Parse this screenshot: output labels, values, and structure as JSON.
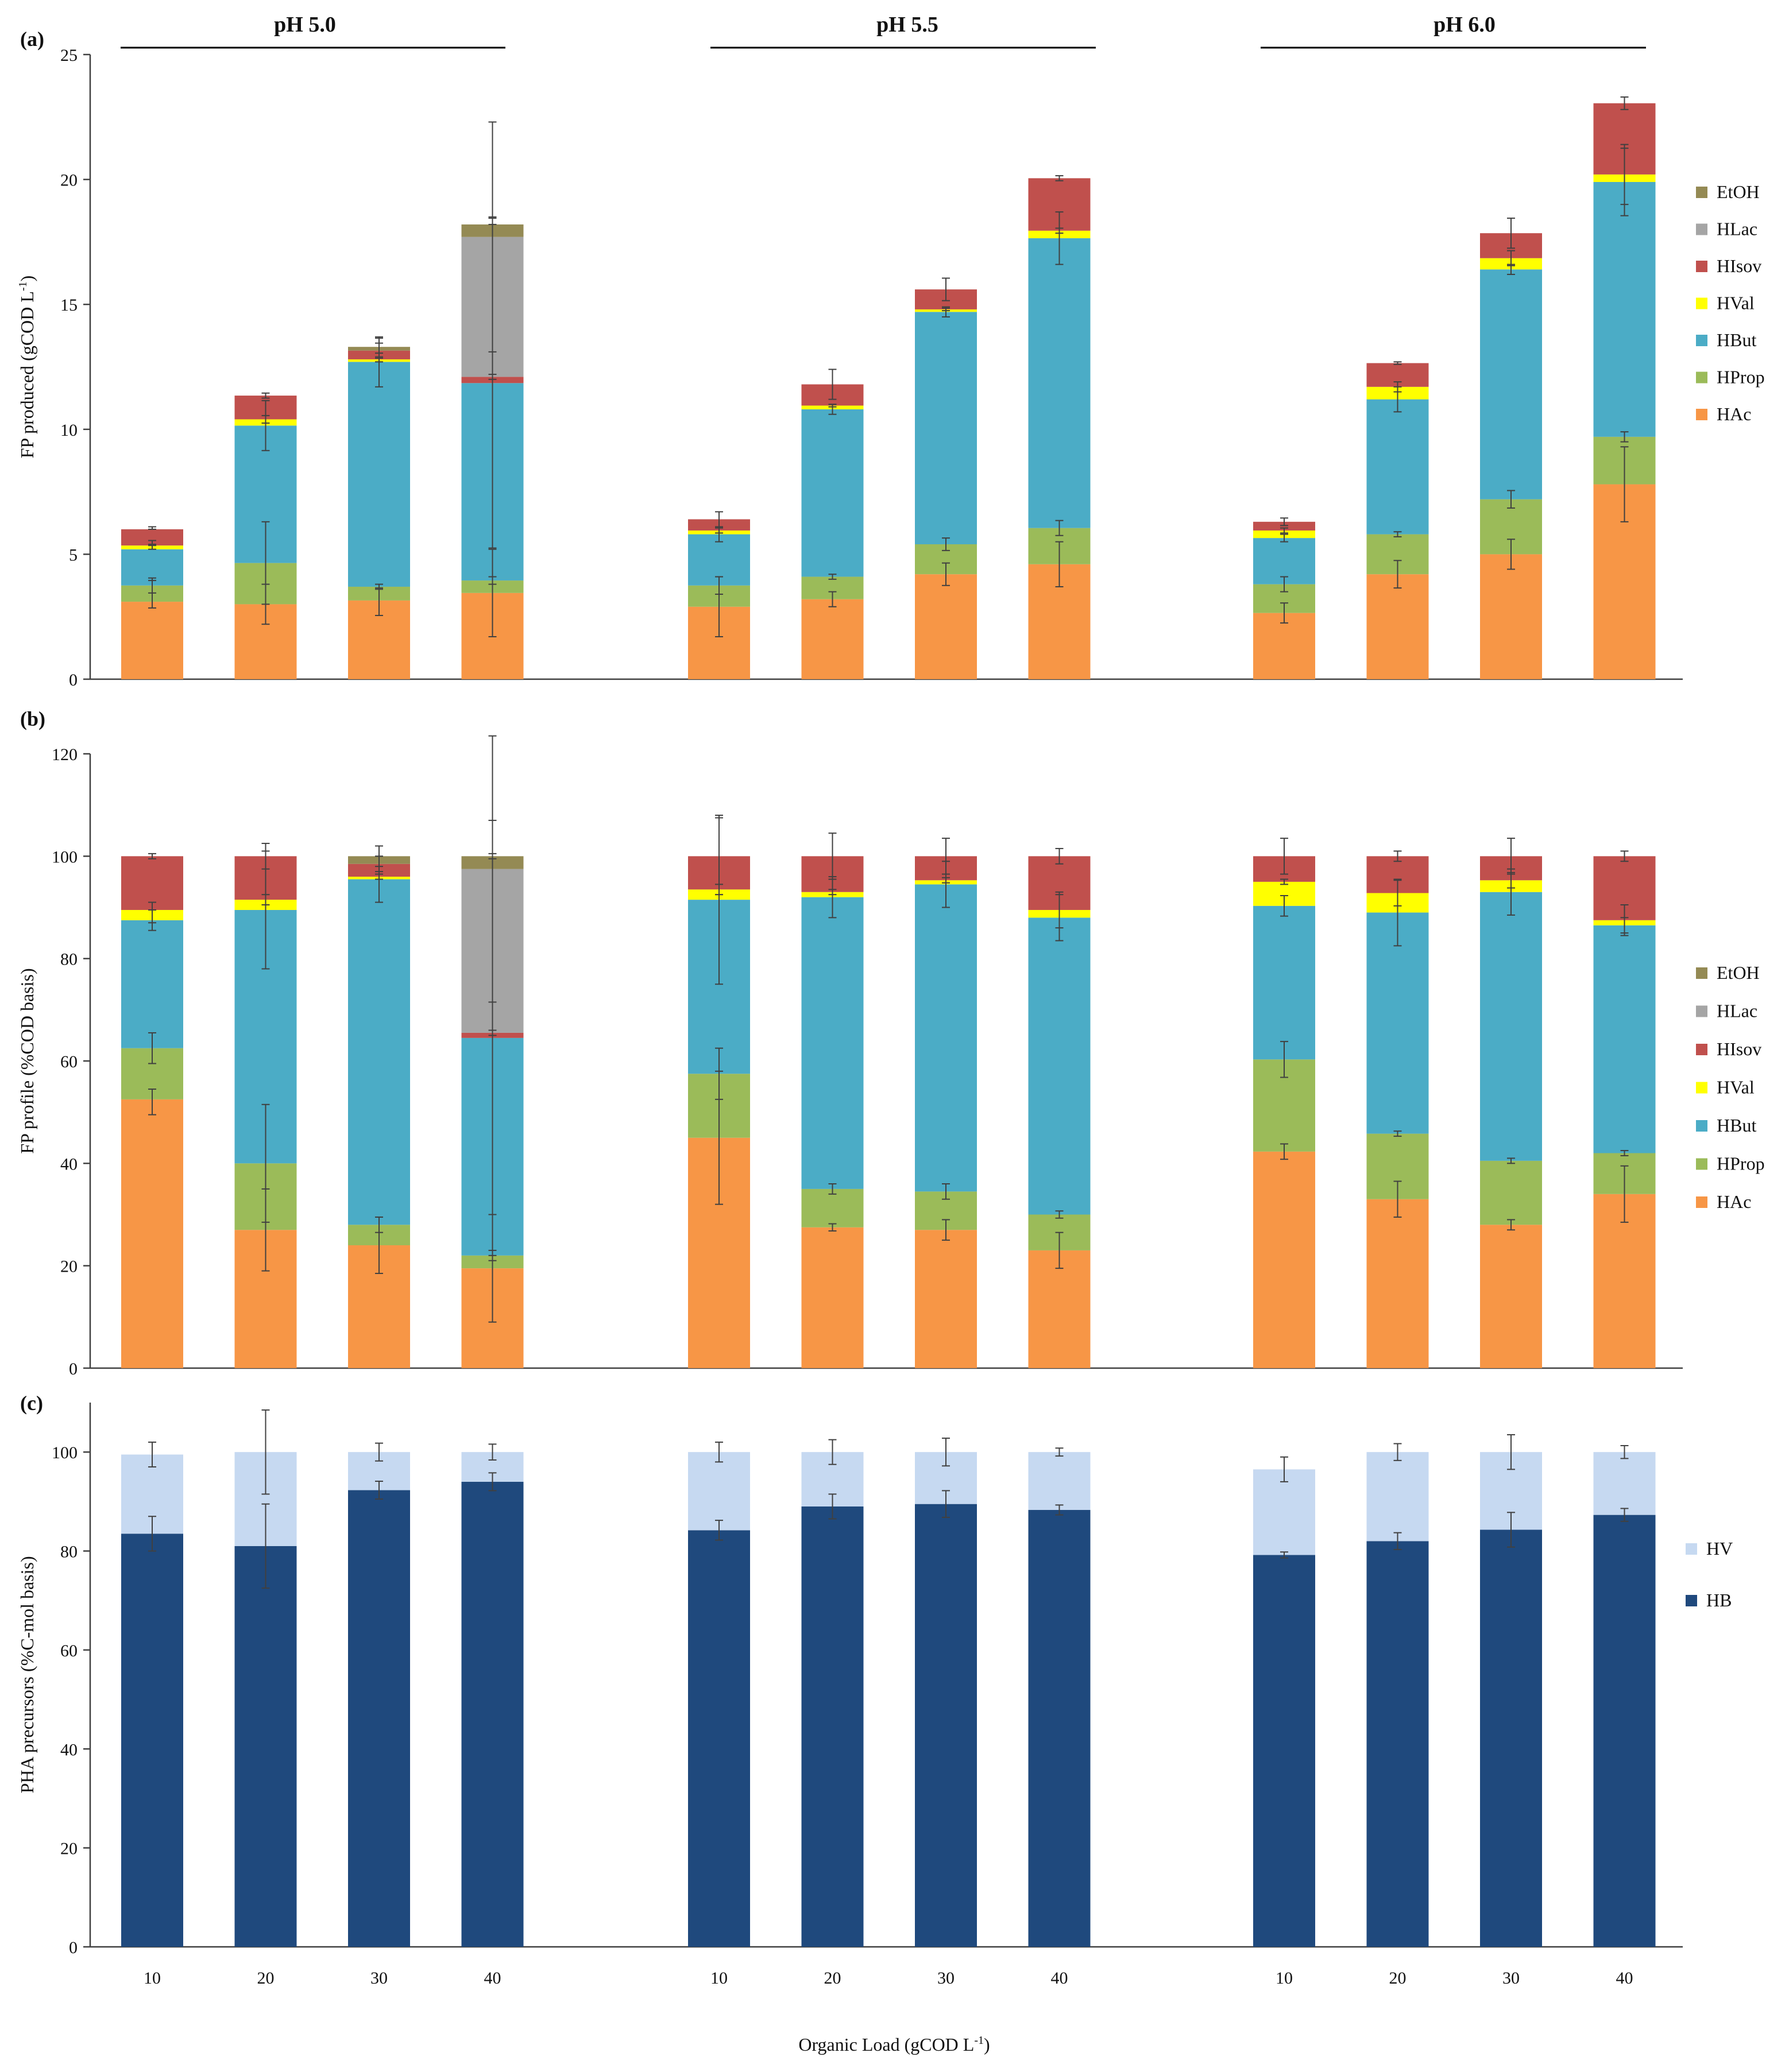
{
  "colors": {
    "HAc": "#f79646",
    "HProp": "#9bbb59",
    "HBut": "#4bacc6",
    "HVal": "#ffff00",
    "HIsov": "#c0504d",
    "HLac": "#a5a5a5",
    "EtOH": "#948a54",
    "HB": "#1f497d",
    "HV": "#c6d9f1",
    "axis": "#404040",
    "error": "#404040"
  },
  "chart_data": [
    {
      "id": "a",
      "type": "bar",
      "stacked": true,
      "panel_label": "(a)",
      "ylabel": "FP produced (gCOD L",
      "ylabel_sup": "-1",
      "ylabel_end": ")",
      "ylim": [
        0,
        25
      ],
      "yticks": [
        "0",
        "5",
        "10",
        "15",
        "20",
        "25"
      ],
      "group_labels": [
        "pH 5.0",
        "pH 5.5",
        "pH 6.0"
      ],
      "legend": [
        "EtOH",
        "HLac",
        "HIsov",
        "HVal",
        "HBut",
        "HProp",
        "HAc"
      ],
      "stack_order": [
        "HAc",
        "HProp",
        "HBut",
        "HVal",
        "HIsov",
        "HLac",
        "EtOH"
      ],
      "bars": [
        {
          "group": 0,
          "load": "10",
          "HAc": 3.1,
          "HProp": 0.65,
          "HBut": 1.45,
          "HVal": 0.15,
          "HIsov": 0.65,
          "HLac": 0,
          "EtOH": 0
        },
        {
          "group": 0,
          "load": "20",
          "HAc": 3.0,
          "HProp": 1.65,
          "HBut": 5.5,
          "HVal": 0.25,
          "HIsov": 0.95,
          "HLac": 0,
          "EtOH": 0
        },
        {
          "group": 0,
          "load": "30",
          "HAc": 3.15,
          "HProp": 0.55,
          "HBut": 9.0,
          "HVal": 0.1,
          "HIsov": 0.35,
          "HLac": 0,
          "EtOH": 0.15
        },
        {
          "group": 0,
          "load": "40",
          "HAc": 3.45,
          "HProp": 0.5,
          "HBut": 7.9,
          "HVal": 0,
          "HIsov": 0.25,
          "HLac": 5.6,
          "EtOH": 0.5
        },
        {
          "group": 1,
          "load": "10",
          "HAc": 2.9,
          "HProp": 0.85,
          "HBut": 2.05,
          "HVal": 0.15,
          "HIsov": 0.45,
          "HLac": 0,
          "EtOH": 0
        },
        {
          "group": 1,
          "load": "20",
          "HAc": 3.2,
          "HProp": 0.9,
          "HBut": 6.7,
          "HVal": 0.15,
          "HIsov": 0.85,
          "HLac": 0,
          "EtOH": 0
        },
        {
          "group": 1,
          "load": "30",
          "HAc": 4.2,
          "HProp": 1.2,
          "HBut": 9.3,
          "HVal": 0.1,
          "HIsov": 0.8,
          "HLac": 0,
          "EtOH": 0
        },
        {
          "group": 1,
          "load": "40",
          "HAc": 4.6,
          "HProp": 1.45,
          "HBut": 11.6,
          "HVal": 0.3,
          "HIsov": 2.1,
          "HLac": 0,
          "EtOH": 0
        },
        {
          "group": 2,
          "load": "10",
          "HAc": 2.65,
          "HProp": 1.15,
          "HBut": 1.85,
          "HVal": 0.3,
          "HIsov": 0.35,
          "HLac": 0,
          "EtOH": 0
        },
        {
          "group": 2,
          "load": "20",
          "HAc": 4.2,
          "HProp": 1.6,
          "HBut": 5.4,
          "HVal": 0.5,
          "HIsov": 0.95,
          "HLac": 0,
          "EtOH": 0
        },
        {
          "group": 2,
          "load": "30",
          "HAc": 5.0,
          "HProp": 2.2,
          "HBut": 9.2,
          "HVal": 0.45,
          "HIsov": 1.0,
          "HLac": 0,
          "EtOH": 0
        },
        {
          "group": 2,
          "load": "40",
          "HAc": 7.8,
          "HProp": 1.9,
          "HBut": 10.2,
          "HVal": 0.3,
          "HIsov": 2.85,
          "HLac": 0,
          "EtOH": 0
        }
      ],
      "errors": [
        [
          [
            3.4,
            0.55
          ],
          [
            3.75,
            0.3
          ],
          [
            5.3,
            0.1
          ],
          [
            5.45,
            0.1
          ],
          [
            6.05,
            0.05
          ]
        ],
        [
          [
            3.0,
            0.8
          ],
          [
            4.65,
            1.65
          ],
          [
            10.15,
            1.0
          ],
          [
            10.4,
            0.15
          ],
          [
            11.35,
            0.1
          ]
        ],
        [
          [
            3.1,
            0.55
          ],
          [
            3.7,
            0.1
          ],
          [
            12.7,
            1.0
          ],
          [
            12.8,
            0.1
          ],
          [
            13.15,
            0.3
          ],
          [
            13.35,
            0.3
          ]
        ],
        [
          [
            3.45,
            1.75
          ],
          [
            3.95,
            0.15
          ],
          [
            11.85,
            6.6
          ],
          [
            12.1,
            0.1
          ],
          [
            17.7,
            4.6
          ],
          [
            18.35,
            0.15
          ]
        ],
        [
          [
            2.9,
            1.2
          ],
          [
            3.75,
            0.35
          ],
          [
            5.8,
            0.3
          ],
          [
            5.95,
            0.1
          ],
          [
            6.4,
            0.3
          ]
        ],
        [
          [
            3.2,
            0.3
          ],
          [
            4.1,
            0.1
          ],
          [
            10.8,
            0.2
          ],
          [
            10.95,
            0.05
          ],
          [
            11.8,
            0.6
          ]
        ],
        [
          [
            4.2,
            0.45
          ],
          [
            5.4,
            0.25
          ],
          [
            14.7,
            0.2
          ],
          [
            14.8,
            0.05
          ],
          [
            15.6,
            0.45
          ]
        ],
        [
          [
            4.6,
            0.9
          ],
          [
            6.05,
            0.3
          ],
          [
            17.65,
            1.05
          ],
          [
            17.95,
            0.1
          ],
          [
            20.05,
            0.1
          ]
        ],
        [
          [
            2.65,
            0.4
          ],
          [
            3.8,
            0.3
          ],
          [
            5.65,
            0.15
          ],
          [
            5.95,
            0.1
          ],
          [
            6.3,
            0.15
          ]
        ],
        [
          [
            4.2,
            0.55
          ],
          [
            5.8,
            0.1
          ],
          [
            11.2,
            0.5
          ],
          [
            11.7,
            0.2
          ],
          [
            12.65,
            0.05
          ]
        ],
        [
          [
            5.0,
            0.6
          ],
          [
            7.2,
            0.35
          ],
          [
            16.4,
            0.2
          ],
          [
            16.85,
            0.3
          ],
          [
            17.85,
            0.6
          ]
        ],
        [
          [
            7.8,
            1.5
          ],
          [
            9.7,
            0.2
          ],
          [
            19.9,
            1.35
          ],
          [
            20.2,
            1.2
          ],
          [
            23.05,
            0.25
          ]
        ]
      ]
    },
    {
      "id": "b",
      "type": "bar",
      "stacked": true,
      "panel_label": "(b)",
      "ylabel": "FP profile (%COD basis)",
      "ylim": [
        0,
        120
      ],
      "yticks": [
        "0",
        "20",
        "40",
        "60",
        "80",
        "100",
        "120"
      ],
      "legend": [
        "EtOH",
        "HLac",
        "HIsov",
        "HVal",
        "HBut",
        "HProp",
        "HAc"
      ],
      "stack_order": [
        "HAc",
        "HProp",
        "HBut",
        "HVal",
        "HIsov",
        "HLac",
        "EtOH"
      ],
      "bars": [
        {
          "group": 0,
          "load": "10",
          "HAc": 52.5,
          "HProp": 10,
          "HBut": 25,
          "HVal": 2,
          "HIsov": 10.5,
          "HLac": 0,
          "EtOH": 0
        },
        {
          "group": 0,
          "load": "20",
          "HAc": 27,
          "HProp": 13,
          "HBut": 49.5,
          "HVal": 2,
          "HIsov": 8.5,
          "HLac": 0,
          "EtOH": 0
        },
        {
          "group": 0,
          "load": "30",
          "HAc": 24,
          "HProp": 4,
          "HBut": 67.5,
          "HVal": 0.5,
          "HIsov": 2.5,
          "HLac": 0,
          "EtOH": 1.5
        },
        {
          "group": 0,
          "load": "40",
          "HAc": 19.5,
          "HProp": 2.5,
          "HBut": 42.5,
          "HVal": 0,
          "HIsov": 1,
          "HLac": 32,
          "EtOH": 2.5
        },
        {
          "group": 1,
          "load": "10",
          "HAc": 45,
          "HProp": 12.5,
          "HBut": 34,
          "HVal": 2,
          "HIsov": 6.5,
          "HLac": 0,
          "EtOH": 0
        },
        {
          "group": 1,
          "load": "20",
          "HAc": 27.5,
          "HProp": 7.5,
          "HBut": 57,
          "HVal": 1,
          "HIsov": 7,
          "HLac": 0,
          "EtOH": 0
        },
        {
          "group": 1,
          "load": "30",
          "HAc": 27,
          "HProp": 7.5,
          "HBut": 60,
          "HVal": 0.8,
          "HIsov": 4.7,
          "HLac": 0,
          "EtOH": 0
        },
        {
          "group": 1,
          "load": "40",
          "HAc": 23,
          "HProp": 7,
          "HBut": 58,
          "HVal": 1.5,
          "HIsov": 10.5,
          "HLac": 0,
          "EtOH": 0
        },
        {
          "group": 2,
          "load": "10",
          "HAc": 42.3,
          "HProp": 18,
          "HBut": 30,
          "HVal": 4.7,
          "HIsov": 5,
          "HLac": 0,
          "EtOH": 0
        },
        {
          "group": 2,
          "load": "20",
          "HAc": 33,
          "HProp": 12.8,
          "HBut": 43.2,
          "HVal": 3.8,
          "HIsov": 7.2,
          "HLac": 0,
          "EtOH": 0
        },
        {
          "group": 2,
          "load": "30",
          "HAc": 28,
          "HProp": 12.5,
          "HBut": 52.5,
          "HVal": 2.3,
          "HIsov": 4.7,
          "HLac": 0,
          "EtOH": 0
        },
        {
          "group": 2,
          "load": "40",
          "HAc": 34,
          "HProp": 8,
          "HBut": 44.5,
          "HVal": 1,
          "HIsov": 12.5,
          "HLac": 0,
          "EtOH": 0
        }
      ],
      "errors": [
        [
          [
            52,
            2.5
          ],
          [
            62.5,
            3
          ],
          [
            87.5,
            2
          ],
          [
            89,
            2
          ],
          [
            100,
            0.5
          ]
        ],
        [
          [
            27,
            8
          ],
          [
            40,
            11.5
          ],
          [
            89.5,
            11.5
          ],
          [
            91.5,
            1
          ],
          [
            100,
            2.5
          ]
        ],
        [
          [
            24,
            5.5
          ],
          [
            28,
            1.5
          ],
          [
            95.5,
            4.5
          ],
          [
            96,
            0.5
          ],
          [
            98.5,
            1.5
          ],
          [
            100,
            2
          ]
        ],
        [
          [
            19.5,
            10.5
          ],
          [
            22,
            1
          ],
          [
            64.5,
            42.5
          ],
          [
            65.5,
            0.5
          ],
          [
            97.5,
            26
          ],
          [
            100,
            0.5
          ]
        ],
        [
          [
            45,
            13
          ],
          [
            57.5,
            5
          ],
          [
            91.5,
            16.5
          ],
          [
            93.5,
            1
          ],
          [
            100,
            7.5
          ]
        ],
        [
          [
            27.5,
            0.7
          ],
          [
            35,
            1
          ],
          [
            92,
            4
          ],
          [
            93,
            0.5
          ],
          [
            100,
            4.5
          ]
        ],
        [
          [
            27,
            2
          ],
          [
            34.5,
            1.5
          ],
          [
            94.5,
            4.5
          ],
          [
            95.3,
            0.5
          ],
          [
            100,
            3.5
          ]
        ],
        [
          [
            23,
            3.5
          ],
          [
            30,
            0.7
          ],
          [
            88,
            4.5
          ],
          [
            89.5,
            3.5
          ],
          [
            100,
            1.5
          ]
        ],
        [
          [
            42.3,
            1.5
          ],
          [
            60.3,
            3.5
          ],
          [
            90.3,
            2
          ],
          [
            95,
            0.5
          ],
          [
            100,
            3.5
          ]
        ],
        [
          [
            33,
            3.5
          ],
          [
            45.8,
            0.5
          ],
          [
            89,
            6.5
          ],
          [
            92.8,
            2.5
          ],
          [
            100,
            1
          ]
        ],
        [
          [
            28,
            1
          ],
          [
            40.5,
            0.5
          ],
          [
            93,
            4.5
          ],
          [
            95.3,
            1.5
          ],
          [
            100,
            3.5
          ]
        ],
        [
          [
            34,
            5.5
          ],
          [
            42,
            0.5
          ],
          [
            86.5,
            1.5
          ],
          [
            87.5,
            3
          ],
          [
            100,
            1
          ]
        ]
      ]
    },
    {
      "id": "c",
      "type": "bar",
      "stacked": true,
      "panel_label": "(c)",
      "ylabel": "PHA precursors (%C-mol basis)",
      "ylim": [
        0,
        110
      ],
      "yticks": [
        "0",
        "20",
        "40",
        "60",
        "80",
        "100"
      ],
      "legend": [
        "HV",
        "HB"
      ],
      "stack_order": [
        "HB",
        "HV"
      ],
      "bars": [
        {
          "group": 0,
          "load": "10",
          "HB": 83.5,
          "HV": 16
        },
        {
          "group": 0,
          "load": "20",
          "HB": 81,
          "HV": 19
        },
        {
          "group": 0,
          "load": "30",
          "HB": 92.3,
          "HV": 7.7
        },
        {
          "group": 0,
          "load": "40",
          "HB": 94,
          "HV": 6
        },
        {
          "group": 1,
          "load": "10",
          "HB": 84.2,
          "HV": 15.8
        },
        {
          "group": 1,
          "load": "20",
          "HB": 89,
          "HV": 11
        },
        {
          "group": 1,
          "load": "30",
          "HB": 89.5,
          "HV": 10.5
        },
        {
          "group": 1,
          "load": "40",
          "HB": 88.3,
          "HV": 11.7
        },
        {
          "group": 2,
          "load": "10",
          "HB": 79.2,
          "HV": 17.3
        },
        {
          "group": 2,
          "load": "20",
          "HB": 82,
          "HV": 18
        },
        {
          "group": 2,
          "load": "30",
          "HB": 84.3,
          "HV": 15.7
        },
        {
          "group": 2,
          "load": "40",
          "HB": 87.3,
          "HV": 12.7
        }
      ],
      "errors": [
        [
          [
            83.5,
            3.5
          ],
          [
            99.5,
            2.5
          ]
        ],
        [
          [
            81,
            8.5
          ],
          [
            100,
            8.5
          ]
        ],
        [
          [
            92.3,
            1.8
          ],
          [
            100,
            1.8
          ]
        ],
        [
          [
            94,
            1.8
          ],
          [
            100,
            1.6
          ]
        ],
        [
          [
            84.2,
            2
          ],
          [
            100,
            2
          ]
        ],
        [
          [
            89,
            2.5
          ],
          [
            100,
            2.5
          ]
        ],
        [
          [
            89.5,
            2.7
          ],
          [
            100,
            2.8
          ]
        ],
        [
          [
            88.3,
            1
          ],
          [
            100,
            0.8
          ]
        ],
        [
          [
            79.2,
            0.6
          ],
          [
            96.5,
            2.5
          ]
        ],
        [
          [
            82,
            1.7
          ],
          [
            100,
            1.7
          ]
        ],
        [
          [
            84.3,
            3.5
          ],
          [
            100,
            3.5
          ]
        ],
        [
          [
            87.3,
            1.3
          ],
          [
            100,
            1.3
          ]
        ]
      ],
      "xlabel": "Organic Load (gCOD L",
      "xlabel_sup": "-1",
      "xlabel_end": ")"
    }
  ]
}
